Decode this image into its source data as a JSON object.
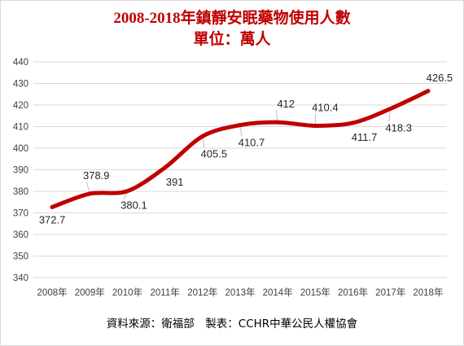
{
  "header": {
    "title_line1": "2008-2018年鎮靜安眠藥物使用人數",
    "title_line2": "單位：萬人"
  },
  "footer": {
    "source": "資料來源：衛福部　製表：CCHR中華公民人權協會"
  },
  "colors": {
    "line": "#c00000",
    "grid": "#d9d9d9",
    "title": "#c00000"
  },
  "chart_data": {
    "type": "line",
    "title": "2008-2018年鎮靜安眠藥物使用人數",
    "subtitle": "單位：萬人",
    "categories": [
      "2008年",
      "2009年",
      "2010年",
      "2011年",
      "2012年",
      "2013年",
      "2014年",
      "2015年",
      "2016年",
      "2017年",
      "2018年"
    ],
    "series": [
      {
        "values": [
          372.7,
          378.9,
          380.1,
          391,
          405.5,
          410.7,
          412,
          410.4,
          411.7,
          418.3,
          426.5
        ]
      }
    ],
    "data_labels": [
      "372.7",
      "378.9",
      "380.1",
      "391",
      "405.5",
      "410.7",
      "412",
      "410.4",
      "411.7",
      "418.3",
      "426.5"
    ],
    "yticks": [
      340,
      350,
      360,
      370,
      380,
      390,
      400,
      410,
      420,
      430,
      440
    ],
    "ylim": [
      340,
      440
    ],
    "grid": true,
    "legend": "none"
  }
}
